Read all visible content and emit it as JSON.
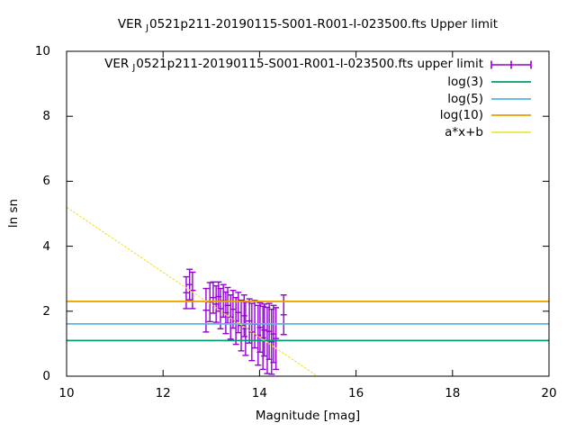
{
  "title": {
    "prefix": "VER",
    "subscript": "J",
    "rest": "0521p211-20190115-S001-R001-I-023500.fts Upper limit"
  },
  "axes": {
    "x_label": "Magnitude [mag]",
    "y_label": "ln sn"
  },
  "legend": {
    "entries": [
      {
        "prefix": "VER",
        "subscript": "J",
        "rest": "0521p211-20190115-S001-R001-I-023500.fts upper limit",
        "color": "#9400D3",
        "sample": "errorbar"
      },
      {
        "label": "log(3)",
        "color": "#009E73",
        "sample": "line"
      },
      {
        "label": "log(5)",
        "color": "#56B4E9",
        "sample": "line"
      },
      {
        "label": "log(10)",
        "color": "#E69F00",
        "sample": "line"
      },
      {
        "label": "a*x+b",
        "color": "#F0E442",
        "sample": "line"
      }
    ]
  },
  "chart_data": {
    "type": "scatter",
    "title": "VER_J0521p211-20190115-S001-R001-I-023500.fts Upper limit",
    "xlabel": "Magnitude [mag]",
    "ylabel": "ln sn",
    "xlim": [
      10,
      20
    ],
    "ylim": [
      0,
      10
    ],
    "xticks": [
      10,
      12,
      14,
      16,
      18,
      20
    ],
    "yticks": [
      0,
      2,
      4,
      6,
      8,
      10
    ],
    "grid": false,
    "legend_position": "top-right-inside",
    "background": "#ffffff",
    "border_color": "#000000",
    "series": [
      {
        "name": "VER_J0521p211-20190115-S001-R001-I-023500.fts upper limit",
        "type": "yerrorbars",
        "color": "#9400D3",
        "points": [
          [
            12.48,
            2.57,
            0.49
          ],
          [
            12.55,
            2.82,
            0.47
          ],
          [
            12.61,
            2.64,
            0.56
          ],
          [
            12.89,
            2.03,
            0.67
          ],
          [
            12.97,
            2.28,
            0.6
          ],
          [
            13.04,
            2.42,
            0.48
          ],
          [
            13.1,
            2.22,
            0.56
          ],
          [
            13.15,
            2.45,
            0.45
          ],
          [
            13.19,
            2.08,
            0.62
          ],
          [
            13.25,
            2.32,
            0.5
          ],
          [
            13.3,
            1.95,
            0.64
          ],
          [
            13.34,
            2.18,
            0.55
          ],
          [
            13.4,
            1.82,
            0.68
          ],
          [
            13.45,
            2.06,
            0.58
          ],
          [
            13.51,
            1.7,
            0.72
          ],
          [
            13.56,
            1.96,
            0.62
          ],
          [
            13.62,
            1.56,
            0.78
          ],
          [
            13.68,
            1.86,
            0.64
          ],
          [
            13.71,
            1.46,
            0.82
          ],
          [
            13.79,
            1.7,
            0.68
          ],
          [
            13.84,
            1.36,
            0.88
          ],
          [
            13.9,
            1.6,
            0.73
          ],
          [
            13.97,
            1.26,
            0.92
          ],
          [
            14.01,
            1.5,
            0.76
          ],
          [
            14.07,
            1.18,
            0.97
          ],
          [
            14.1,
            1.42,
            0.8
          ],
          [
            14.16,
            1.1,
            1.02
          ],
          [
            14.2,
            1.38,
            0.86
          ],
          [
            14.25,
            1.06,
            1.0
          ],
          [
            14.29,
            1.3,
            0.88
          ],
          [
            14.34,
            1.16,
            0.95
          ],
          [
            14.5,
            1.89,
            0.61
          ]
        ]
      },
      {
        "name": "log(3)",
        "type": "hline",
        "y": 1.0986,
        "color": "#009E73"
      },
      {
        "name": "log(5)",
        "type": "hline",
        "y": 1.6094,
        "color": "#56B4E9"
      },
      {
        "name": "log(10)",
        "type": "hline",
        "y": 2.3026,
        "color": "#E69F00"
      },
      {
        "name": "a*x+b",
        "type": "linear",
        "a": -1.0,
        "b": 15.2,
        "color": "#F0E442"
      }
    ]
  }
}
